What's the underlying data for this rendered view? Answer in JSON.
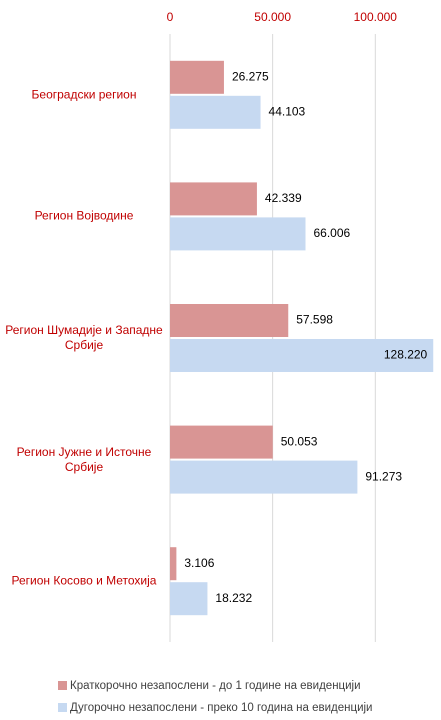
{
  "chart_data": {
    "type": "bar",
    "orientation": "horizontal",
    "categories": [
      "Београдски регион",
      "Регион Војводине",
      "Регион Шумадије и Западне Србије",
      "Регион Јужне и Источне Србије",
      "Регион Косово и Метохија"
    ],
    "series": [
      {
        "name": "Краткорочно незапослени - до 1 године на евиденцији",
        "color": "#d99594",
        "values": [
          26275,
          42339,
          57598,
          50053,
          3106
        ],
        "value_labels": [
          "26.275",
          "42.339",
          "57.598",
          "50.053",
          "3.106"
        ]
      },
      {
        "name": "Дугорочно незапослени - преко 10 година на евиденцији",
        "color": "#c6d9f1",
        "values": [
          44103,
          66006,
          128220,
          91273,
          18232
        ],
        "value_labels": [
          "44.103",
          "66.006",
          "128.220",
          "91.273",
          "18.232"
        ]
      }
    ],
    "xlim": [
      0,
      132000
    ],
    "xticks": [
      0,
      {
        "value": 50000,
        "label": "50.000"
      },
      {
        "value": 100000,
        "label": "100.000"
      }
    ],
    "grid": true,
    "legend": "bottom"
  }
}
